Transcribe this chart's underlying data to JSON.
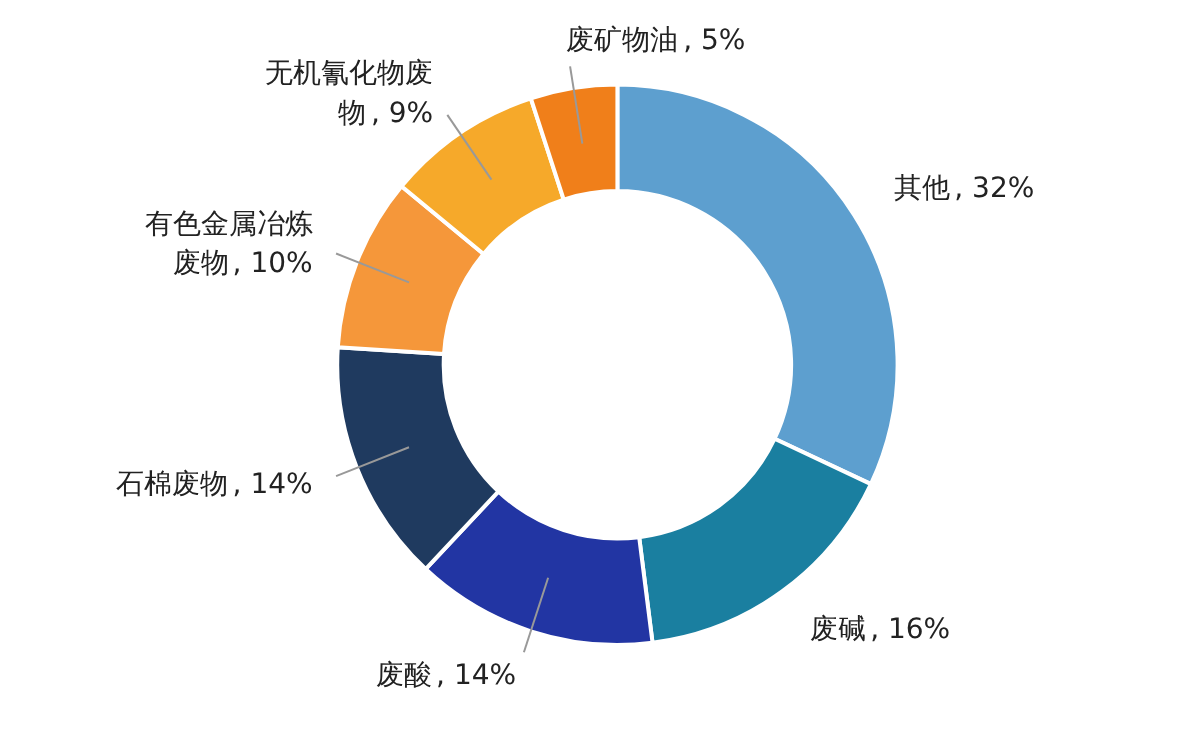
{
  "chart_data": {
    "type": "donut",
    "categories": [
      "其他",
      "废碱",
      "废酸",
      "石棉废物",
      "有色金属冶炼废物",
      "无机氰化物废物",
      "废矿物油"
    ],
    "values": [
      32,
      16,
      14,
      14,
      10,
      9,
      5
    ],
    "colors": [
      "#5d9fcf",
      "#1a7fa0",
      "#2235a3",
      "#1f3a5f",
      "#f5973a",
      "#f6a92a",
      "#f07f1a"
    ],
    "value_labels": [
      ", 32%",
      ", 16%",
      ", 14%",
      ", 14%",
      ", 10%",
      ", 9%",
      ", 5%"
    ]
  }
}
